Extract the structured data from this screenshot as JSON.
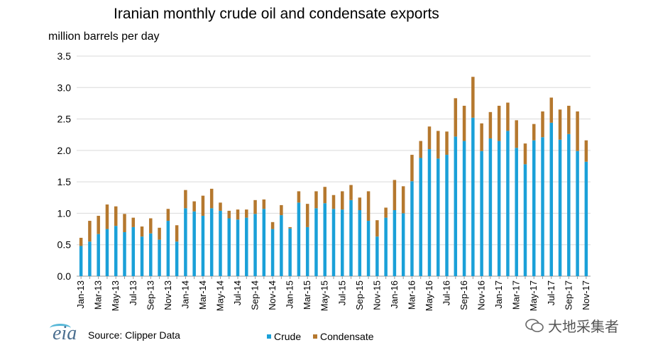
{
  "title": "Iranian monthly crude oil and condensate exports",
  "source": "Source: Clipper Data",
  "logo_text": "eia",
  "watermark": "大地采集者",
  "colors": {
    "crude": "#1aa0d8",
    "condensate": "#b5782e",
    "grid": "#d9d9d9",
    "axis": "#9a9a9a"
  },
  "chart_data": {
    "type": "bar",
    "stacked": true,
    "ylabel": "million barrels per day",
    "ylim": [
      0,
      3.5
    ],
    "yticks": [
      "0.0",
      "0.5",
      "1.0",
      "1.5",
      "2.0",
      "2.5",
      "3.0",
      "3.5"
    ],
    "grid": true,
    "legend_position": "bottom",
    "categories": [
      "Jan-13",
      "Feb-13",
      "Mar-13",
      "Apr-13",
      "May-13",
      "Jun-13",
      "Jul-13",
      "Aug-13",
      "Sep-13",
      "Oct-13",
      "Nov-13",
      "Dec-13",
      "Jan-14",
      "Feb-14",
      "Mar-14",
      "Apr-14",
      "May-14",
      "Jun-14",
      "Jul-14",
      "Aug-14",
      "Sep-14",
      "Oct-14",
      "Nov-14",
      "Dec-14",
      "Jan-15",
      "Feb-15",
      "Mar-15",
      "Apr-15",
      "May-15",
      "Jun-15",
      "Jul-15",
      "Aug-15",
      "Sep-15",
      "Oct-15",
      "Nov-15",
      "Dec-15",
      "Jan-16",
      "Feb-16",
      "Mar-16",
      "Apr-16",
      "May-16",
      "Jun-16",
      "Jul-16",
      "Aug-16",
      "Sep-16",
      "Oct-16",
      "Nov-16",
      "Dec-16",
      "Jan-17",
      "Feb-17",
      "Mar-17",
      "Apr-17",
      "May-17",
      "Jun-17",
      "Jul-17",
      "Aug-17",
      "Sep-17",
      "Oct-17",
      "Nov-17"
    ],
    "series": [
      {
        "name": "Crude",
        "values": [
          0.48,
          0.55,
          0.67,
          0.75,
          0.8,
          0.7,
          0.78,
          0.63,
          0.68,
          0.58,
          0.88,
          0.55,
          1.08,
          1.03,
          0.96,
          1.08,
          1.04,
          0.92,
          0.9,
          0.93,
          0.99,
          1.07,
          0.75,
          0.97,
          0.76,
          1.17,
          0.78,
          1.08,
          1.16,
          1.07,
          1.06,
          1.21,
          1.05,
          0.88,
          0.63,
          0.93,
          1.05,
          1.0,
          1.51,
          1.88,
          2.02,
          1.87,
          1.93,
          2.22,
          2.15,
          2.52,
          1.99,
          2.19,
          2.15,
          2.31,
          2.04,
          1.78,
          2.16,
          2.21,
          2.44,
          2.17,
          2.26,
          1.99,
          1.82
        ]
      },
      {
        "name": "Condensate",
        "values": [
          0.13,
          0.33,
          0.29,
          0.39,
          0.31,
          0.29,
          0.15,
          0.16,
          0.24,
          0.19,
          0.19,
          0.26,
          0.29,
          0.16,
          0.32,
          0.31,
          0.13,
          0.12,
          0.16,
          0.13,
          0.22,
          0.15,
          0.11,
          0.16,
          0.02,
          0.18,
          0.37,
          0.27,
          0.26,
          0.22,
          0.29,
          0.24,
          0.2,
          0.47,
          0.26,
          0.16,
          0.48,
          0.43,
          0.42,
          0.27,
          0.36,
          0.44,
          0.37,
          0.61,
          0.56,
          0.65,
          0.44,
          0.42,
          0.56,
          0.45,
          0.44,
          0.33,
          0.26,
          0.41,
          0.4,
          0.48,
          0.45,
          0.63,
          0.34
        ]
      }
    ]
  },
  "legend": [
    {
      "label": "Crude",
      "color_key": "crude"
    },
    {
      "label": "Condensate",
      "color_key": "condensate"
    }
  ]
}
